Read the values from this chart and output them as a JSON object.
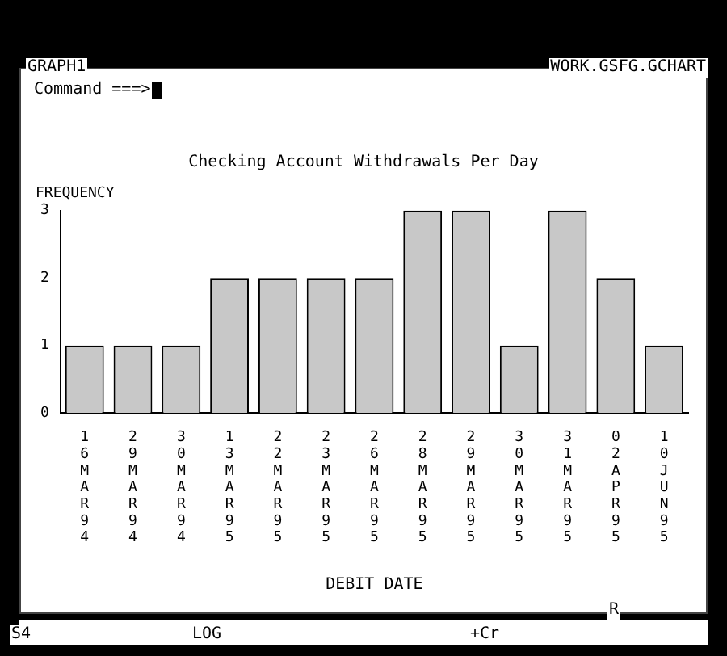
{
  "chart_data": {
    "type": "bar",
    "title": "Checking Account Withdrawals Per Day",
    "xlabel": "DEBIT DATE",
    "ylabel": "FREQUENCY",
    "categories": [
      "16MAR94",
      "29MAR94",
      "30MAR94",
      "13MAR95",
      "22MAR95",
      "23MAR95",
      "26MAR95",
      "28MAR95",
      "29MAR95",
      "30MAR95",
      "31MAR95",
      "02APR95",
      "10JUN95"
    ],
    "values": [
      1,
      1,
      1,
      2,
      2,
      2,
      2,
      3,
      3,
      1,
      3,
      2,
      1
    ],
    "color": "#c8c8c8",
    "ylim": [
      0,
      3
    ],
    "yticks": [
      0,
      1,
      2,
      3
    ],
    "grid": false,
    "legend": false,
    "annotations": [
      "GRAPH1",
      "WORK.GSFG.GCHART",
      "Command ===>",
      "S4",
      "LOG",
      "+Cr",
      "R"
    ]
  }
}
